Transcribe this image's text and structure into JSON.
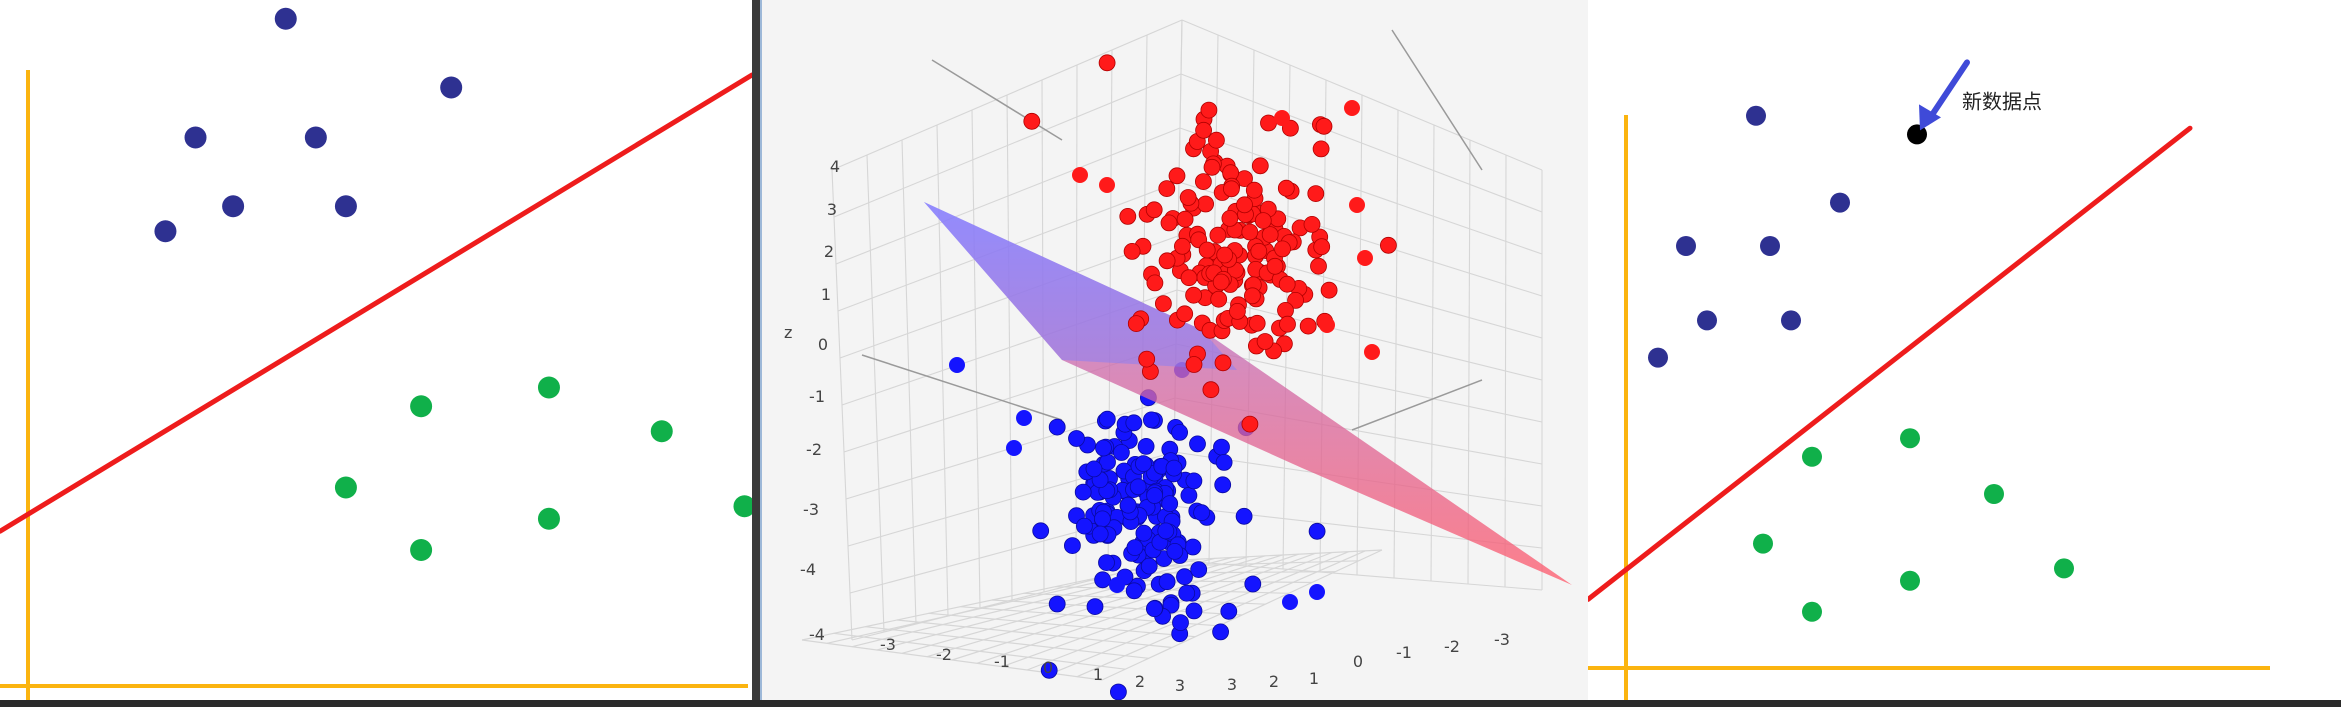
{
  "colors": {
    "class_a": "#2e3191",
    "class_b": "#10b04a",
    "boundary": "#ee1c1c",
    "axes": "#fbb40f",
    "red_cluster": "#ff1a1a",
    "blue_cluster": "#1414ff",
    "new_point": "#000000",
    "arrow": "#3f4ad8"
  },
  "chart_data": [
    {
      "type": "scatter",
      "title": "",
      "xlim": [
        0,
        10
      ],
      "ylim": [
        0,
        10
      ],
      "grid": false,
      "series": [
        {
          "values": [
            [
              3.8,
              9.7
            ],
            [
              6.0,
              8.6
            ],
            [
              2.6,
              7.8
            ],
            [
              4.2,
              7.8
            ],
            [
              3.1,
              6.7
            ],
            [
              4.6,
              6.7
            ],
            [
              2.2,
              6.3
            ]
          ]
        },
        {
          "values": [
            [
              5.6,
              3.5
            ],
            [
              7.3,
              3.8
            ],
            [
              8.8,
              3.1
            ],
            [
              4.6,
              2.2
            ],
            [
              7.3,
              1.7
            ],
            [
              5.6,
              1.2
            ],
            [
              9.9,
              1.9
            ]
          ]
        }
      ],
      "lines": [
        {
          "from": [
            0,
            1.5
          ],
          "to": [
            10,
            8.8
          ]
        }
      ]
    },
    {
      "type": "scatter",
      "title": "",
      "zlabel": "z",
      "z_ticks": [
        "4",
        "3",
        "2",
        "1",
        "0",
        "-1",
        "-2",
        "-3",
        "-4"
      ],
      "x_ticks": [
        "-3",
        "-2",
        "-1",
        "0",
        "1",
        "2",
        "3"
      ],
      "y_ticks": [
        "3",
        "2",
        "1",
        "0",
        "-1",
        "-2",
        "-3"
      ],
      "series": [
        {
          "cluster": "upper",
          "count": 170
        },
        {
          "cluster": "lower",
          "count": 170
        }
      ],
      "surface": "separating plane"
    },
    {
      "type": "scatter",
      "title": "",
      "xlim": [
        0,
        10
      ],
      "ylim": [
        0,
        10
      ],
      "grid": false,
      "series": [
        {
          "values": [
            [
              2.4,
              9.1
            ],
            [
              3.6,
              7.7
            ],
            [
              1.4,
              7.0
            ],
            [
              2.6,
              7.0
            ],
            [
              1.7,
              5.8
            ],
            [
              2.9,
              5.8
            ],
            [
              1.0,
              5.2
            ]
          ]
        },
        {
          "values": [
            [
              3.2,
              3.6
            ],
            [
              4.6,
              3.9
            ],
            [
              5.8,
              3.0
            ],
            [
              2.5,
              2.2
            ],
            [
              4.6,
              1.6
            ],
            [
              3.2,
              1.1
            ],
            [
              6.8,
              1.8
            ]
          ]
        },
        {
          "values": [
            [
              4.7,
              8.8
            ]
          ]
        }
      ],
      "lines": [
        {
          "from": [
            0,
            1.3
          ],
          "to": [
            8.6,
            8.9
          ]
        }
      ],
      "annotations": [
        {
          "text": "新数据点"
        }
      ]
    }
  ]
}
